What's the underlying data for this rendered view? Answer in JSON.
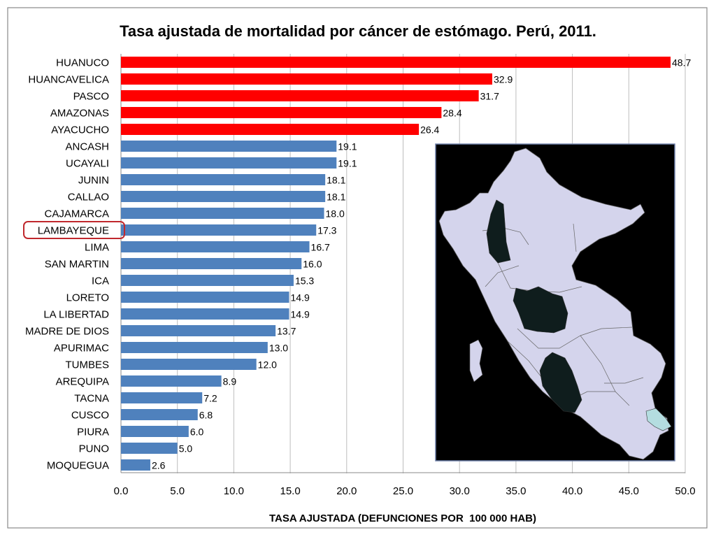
{
  "chart_data": {
    "type": "bar",
    "orientation": "horizontal",
    "title": "Tasa ajustada de mortalidad por cáncer de estómago. Perú, 2011.",
    "xlabel": "TASA AJUSTADA (DEFUNCIONES POR  100 000 HAB)",
    "ylabel": "",
    "xlim": [
      0,
      50
    ],
    "x_ticks": [
      "0.0",
      "5.0",
      "10.0",
      "15.0",
      "20.0",
      "25.0",
      "30.0",
      "35.0",
      "40.0",
      "45.0",
      "50.0"
    ],
    "grid": "vertical",
    "colors": {
      "top5": "#ff0000",
      "others": "#4f81bd"
    },
    "highlighted_category": "LAMBAYEQUE",
    "highlight_color": "#c0282d",
    "categories": [
      "HUANUCO",
      "HUANCAVELICA",
      "PASCO",
      "AMAZONAS",
      "AYACUCHO",
      "ANCASH",
      "UCAYALI",
      "JUNIN",
      "CALLAO",
      "CAJAMARCA",
      "LAMBAYEQUE",
      "LIMA",
      "SAN MARTIN",
      "ICA",
      "LORETO",
      "LA LIBERTAD",
      "MADRE DE DIOS",
      "APURIMAC",
      "TUMBES",
      "AREQUIPA",
      "TACNA",
      "CUSCO",
      "PIURA",
      "PUNO",
      "MOQUEGUA"
    ],
    "values": [
      48.7,
      32.9,
      31.7,
      28.4,
      26.4,
      19.1,
      19.1,
      18.1,
      18.1,
      18.0,
      17.3,
      16.7,
      16.0,
      15.3,
      14.9,
      14.9,
      13.7,
      13.0,
      12.0,
      8.9,
      7.2,
      6.8,
      6.0,
      5.0,
      2.6
    ],
    "value_labels": [
      "48.7",
      "32.9",
      "31.7",
      "28.4",
      "26.4",
      "19.1",
      "19.1",
      "18.1",
      "18.1",
      "18.0",
      "17.3",
      "16.7",
      "16.0",
      "15.3",
      "14.9",
      "14.9",
      "13.7",
      "13.0",
      "12.0",
      "8.9",
      "7.2",
      "6.8",
      "6.0",
      "5.0",
      "2.6"
    ],
    "red_count": 5
  },
  "inset_map": {
    "name": "peru-regions-map",
    "background": "#000000",
    "land_color": "#d4d4ec",
    "dark_regions_color": "#0f1d1d",
    "light_region_color": "#b4dde0"
  }
}
